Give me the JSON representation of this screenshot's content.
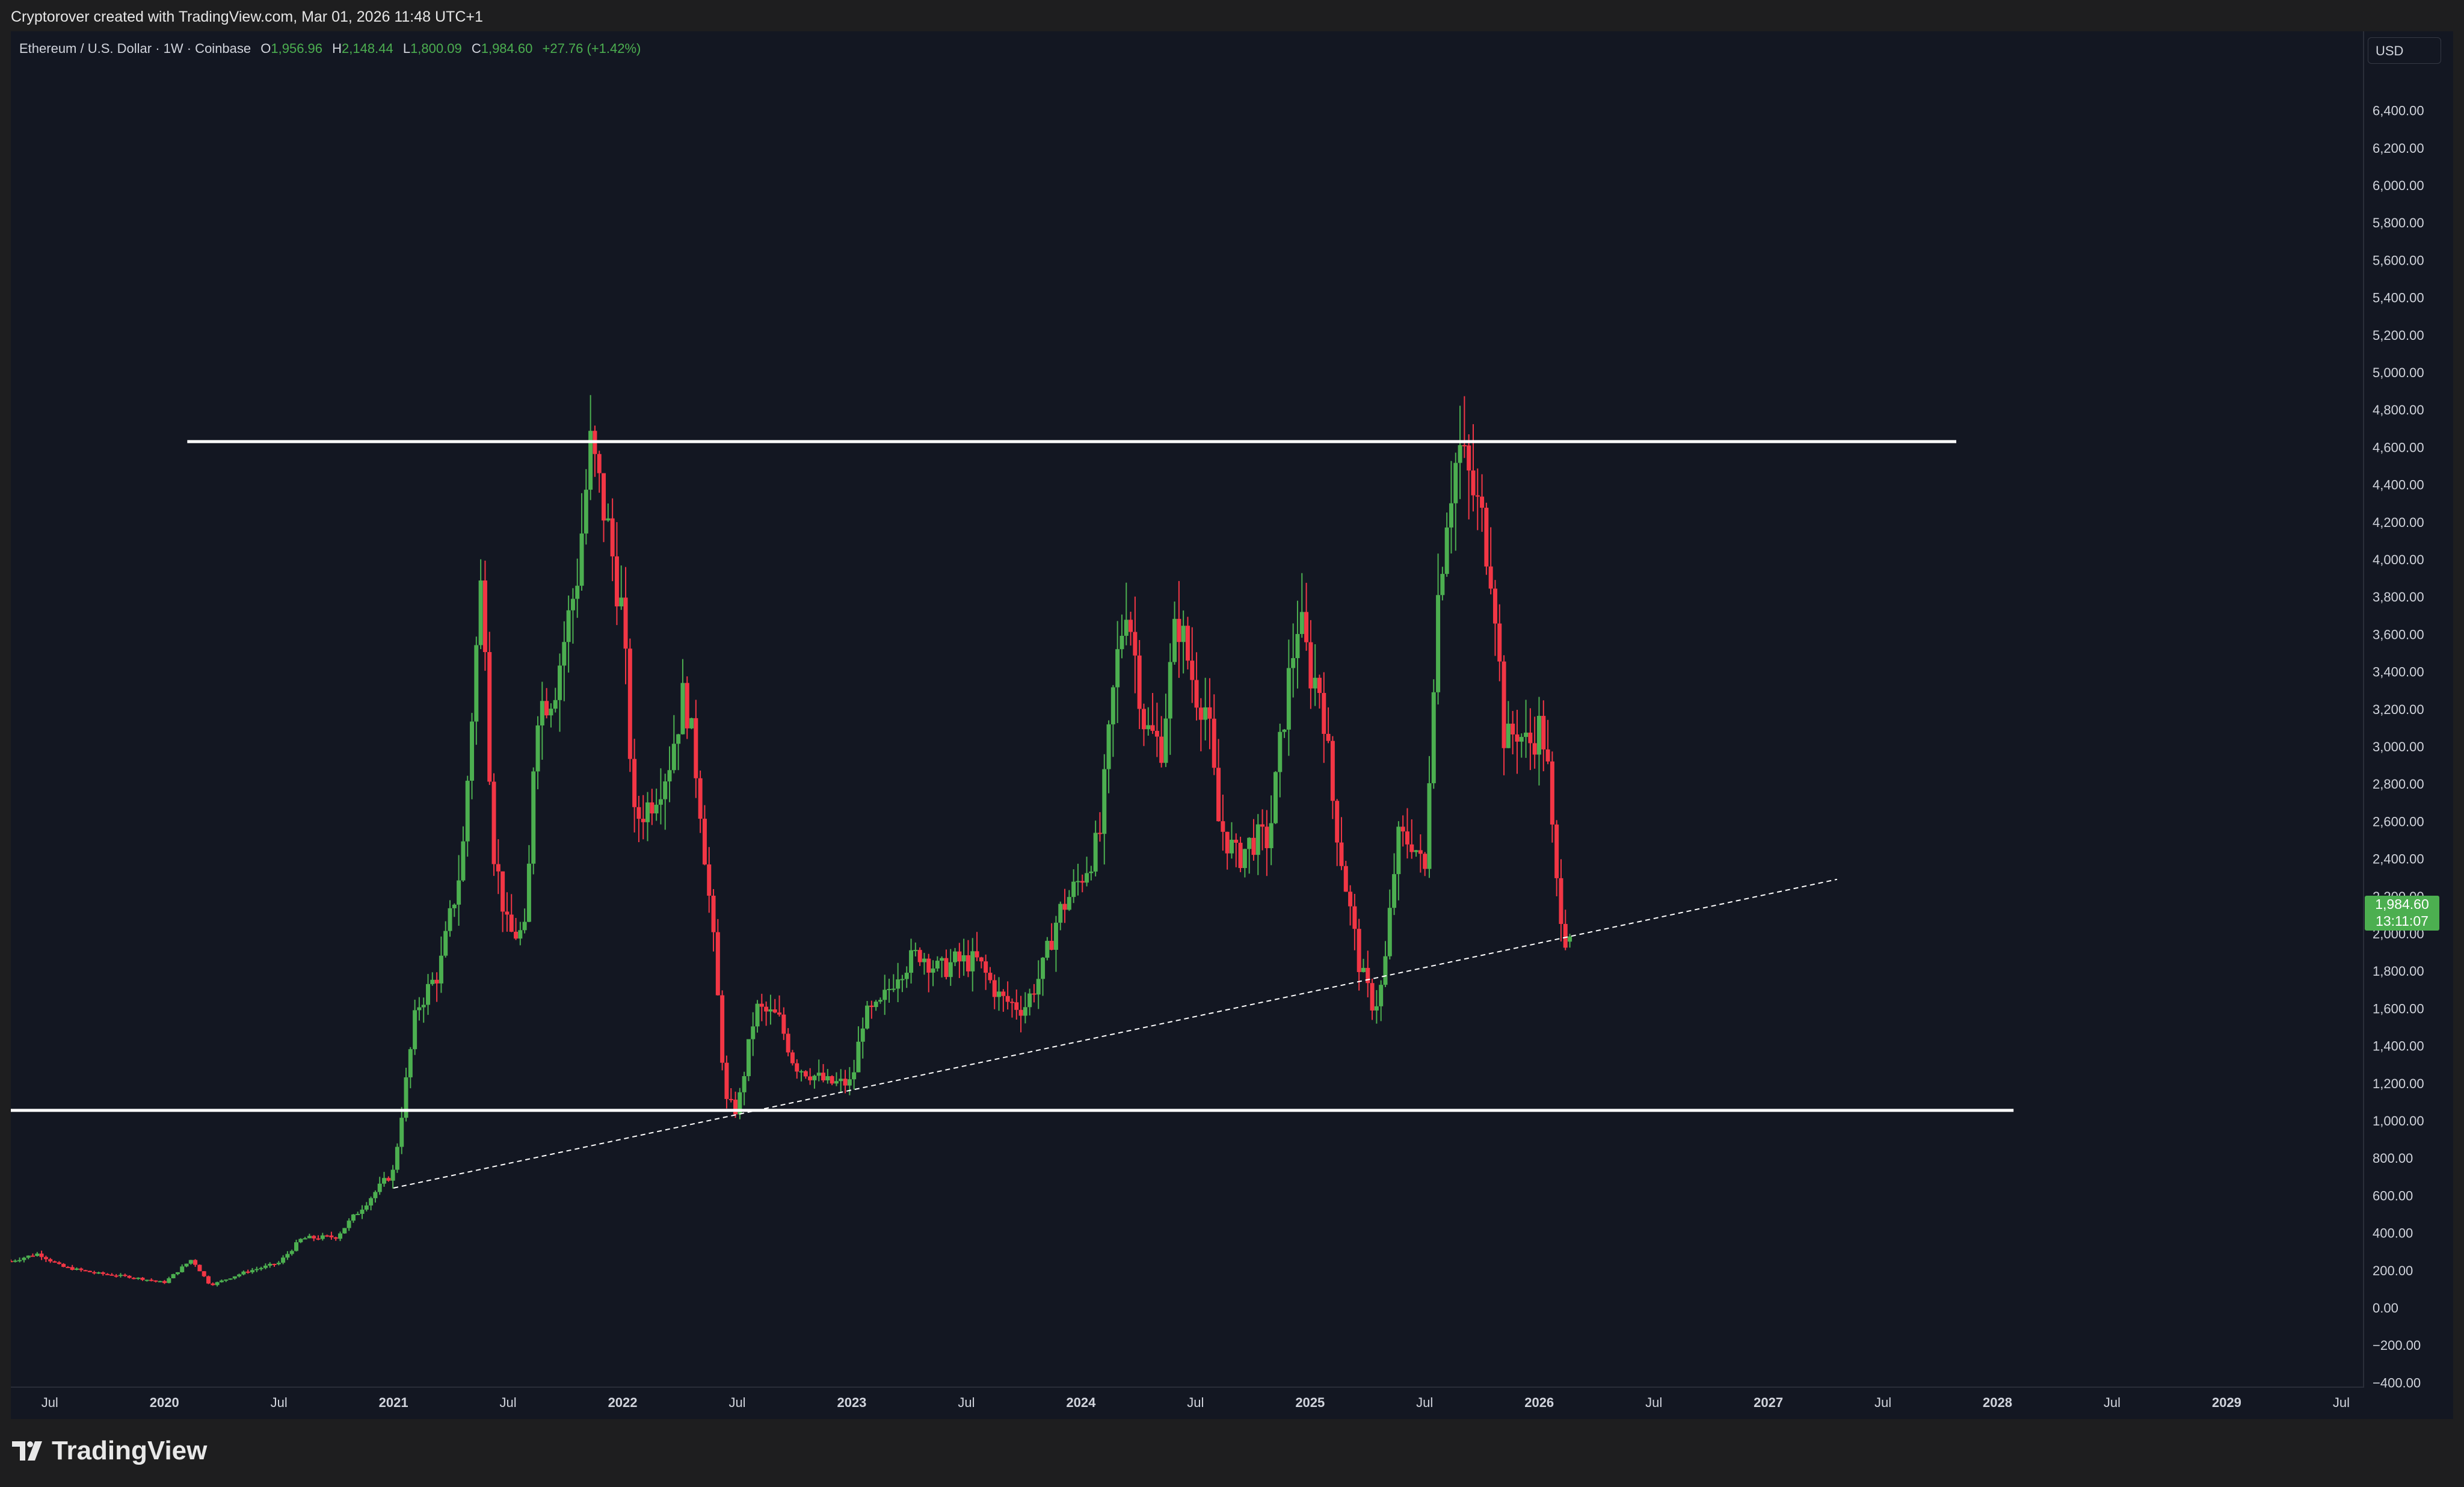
{
  "header": {
    "credit": "Cryptorover created with TradingView.com, Mar 01, 2026 11:48 UTC+1"
  },
  "legend": {
    "symbol": "Ethereum / U.S. Dollar · 1W · Coinbase",
    "open_label": "O",
    "open": "1,956.96",
    "high_label": "H",
    "high": "2,148.44",
    "low_label": "L",
    "low": "1,800.09",
    "close_label": "C",
    "close": "1,984.60",
    "change": "+27.76 (+1.42%)"
  },
  "price_scale": {
    "currency": "USD",
    "last_price": "1,984.60",
    "countdown": "13:11:07"
  },
  "colors": {
    "up": "#4caf50",
    "down": "#f23645",
    "background": "#131722",
    "grid": "#1e222d",
    "text": "#d1d4dc",
    "lines": "#ffffff"
  },
  "footer": {
    "brand": "TradingView"
  },
  "chart_data": {
    "type": "candlestick",
    "title": "Ethereum / U.S. Dollar · 1W · Coinbase",
    "ylim": [
      -500,
      6500
    ],
    "y_ticks": [
      -400,
      -200,
      0,
      200,
      400,
      600,
      800,
      1000,
      1200,
      1400,
      1600,
      1800,
      2000,
      2200,
      2400,
      2600,
      2800,
      3000,
      3200,
      3400,
      3600,
      3800,
      4000,
      4200,
      4400,
      4600,
      4800,
      5000,
      5200,
      5400,
      5600,
      5800,
      6000,
      6200,
      6400
    ],
    "y_tick_labels": [
      "−400.00",
      "−200.00",
      "0.00",
      "200.00",
      "400.00",
      "600.00",
      "800.00",
      "1,000.00",
      "1,200.00",
      "1,400.00",
      "1,600.00",
      "1,800.00",
      "2,000.00",
      "2,200.00",
      "2,400.00",
      "2,600.00",
      "2,800.00",
      "3,000.00",
      "3,200.00",
      "3,400.00",
      "3,600.00",
      "3,800.00",
      "4,000.00",
      "4,200.00",
      "4,400.00",
      "4,600.00",
      "4,800.00",
      "5,000.00",
      "5,200.00",
      "5,400.00",
      "5,600.00",
      "5,800.00",
      "6,000.00",
      "6,200.00",
      "6,400.00"
    ],
    "xlim": [
      2019.33,
      2029.6
    ],
    "x_ticks": [
      {
        "t": 2019.5,
        "label": "Jul",
        "bold": false
      },
      {
        "t": 2020.0,
        "label": "2020",
        "bold": true
      },
      {
        "t": 2020.5,
        "label": "Jul",
        "bold": false
      },
      {
        "t": 2021.0,
        "label": "2021",
        "bold": true
      },
      {
        "t": 2021.5,
        "label": "Jul",
        "bold": false
      },
      {
        "t": 2022.0,
        "label": "2022",
        "bold": true
      },
      {
        "t": 2022.5,
        "label": "Jul",
        "bold": false
      },
      {
        "t": 2023.0,
        "label": "2023",
        "bold": true
      },
      {
        "t": 2023.5,
        "label": "Jul",
        "bold": false
      },
      {
        "t": 2024.0,
        "label": "2024",
        "bold": true
      },
      {
        "t": 2024.5,
        "label": "Jul",
        "bold": false
      },
      {
        "t": 2025.0,
        "label": "2025",
        "bold": true
      },
      {
        "t": 2025.5,
        "label": "Jul",
        "bold": false
      },
      {
        "t": 2026.0,
        "label": "2026",
        "bold": true
      },
      {
        "t": 2026.5,
        "label": "Jul",
        "bold": false
      },
      {
        "t": 2027.0,
        "label": "2027",
        "bold": true
      },
      {
        "t": 2027.5,
        "label": "Jul",
        "bold": false
      },
      {
        "t": 2028.0,
        "label": "2028",
        "bold": true
      },
      {
        "t": 2028.5,
        "label": "Jul",
        "bold": false
      },
      {
        "t": 2029.0,
        "label": "2029",
        "bold": true
      },
      {
        "t": 2029.5,
        "label": "Jul",
        "bold": false
      }
    ],
    "price_path": [
      [
        2019.33,
        250
      ],
      [
        2019.45,
        290
      ],
      [
        2019.55,
        220
      ],
      [
        2019.7,
        185
      ],
      [
        2019.85,
        165
      ],
      [
        2020.0,
        135
      ],
      [
        2020.12,
        260
      ],
      [
        2020.2,
        120
      ],
      [
        2020.35,
        190
      ],
      [
        2020.5,
        240
      ],
      [
        2020.6,
        370
      ],
      [
        2020.75,
        380
      ],
      [
        2020.9,
        590
      ],
      [
        2021.0,
        730
      ],
      [
        2021.1,
        1600
      ],
      [
        2021.2,
        1800
      ],
      [
        2021.3,
        2400
      ],
      [
        2021.36,
        3500
      ],
      [
        2021.39,
        4000
      ],
      [
        2021.43,
        2500
      ],
      [
        2021.5,
        2000
      ],
      [
        2021.58,
        2000
      ],
      [
        2021.62,
        3200
      ],
      [
        2021.7,
        3300
      ],
      [
        2021.8,
        3900
      ],
      [
        2021.86,
        4600
      ],
      [
        2021.93,
        4200
      ],
      [
        2022.0,
        3700
      ],
      [
        2022.05,
        2600
      ],
      [
        2022.12,
        2700
      ],
      [
        2022.2,
        2900
      ],
      [
        2022.27,
        3300
      ],
      [
        2022.33,
        2800
      ],
      [
        2022.4,
        1900
      ],
      [
        2022.45,
        1100
      ],
      [
        2022.5,
        1050
      ],
      [
        2022.58,
        1600
      ],
      [
        2022.68,
        1550
      ],
      [
        2022.75,
        1300
      ],
      [
        2022.82,
        1250
      ],
      [
        2022.9,
        1200
      ],
      [
        2023.0,
        1200
      ],
      [
        2023.05,
        1550
      ],
      [
        2023.12,
        1600
      ],
      [
        2023.2,
        1800
      ],
      [
        2023.3,
        1900
      ],
      [
        2023.38,
        1800
      ],
      [
        2023.45,
        1850
      ],
      [
        2023.55,
        1850
      ],
      [
        2023.65,
        1650
      ],
      [
        2023.75,
        1600
      ],
      [
        2023.83,
        1800
      ],
      [
        2023.9,
        2100
      ],
      [
        2024.0,
        2300
      ],
      [
        2024.08,
        2500
      ],
      [
        2024.15,
        3400
      ],
      [
        2024.2,
        3800
      ],
      [
        2024.28,
        3100
      ],
      [
        2024.35,
        3000
      ],
      [
        2024.42,
        3700
      ],
      [
        2024.5,
        3300
      ],
      [
        2024.55,
        3200
      ],
      [
        2024.6,
        2600
      ],
      [
        2024.68,
        2400
      ],
      [
        2024.75,
        2500
      ],
      [
        2024.82,
        2500
      ],
      [
        2024.9,
        3300
      ],
      [
        2024.95,
        3700
      ],
      [
        2025.0,
        3400
      ],
      [
        2025.05,
        3300
      ],
      [
        2025.1,
        2700
      ],
      [
        2025.15,
        2300
      ],
      [
        2025.22,
        1800
      ],
      [
        2025.28,
        1600
      ],
      [
        2025.32,
        1750
      ],
      [
        2025.38,
        2500
      ],
      [
        2025.45,
        2500
      ],
      [
        2025.5,
        2300
      ],
      [
        2025.55,
        3700
      ],
      [
        2025.6,
        4300
      ],
      [
        2025.65,
        4600
      ],
      [
        2025.7,
        4400
      ],
      [
        2025.75,
        4200
      ],
      [
        2025.8,
        3900
      ],
      [
        2025.85,
        3000
      ],
      [
        2025.9,
        3100
      ],
      [
        2025.95,
        3000
      ],
      [
        2026.0,
        3100
      ],
      [
        2026.03,
        3000
      ],
      [
        2026.07,
        2300
      ],
      [
        2026.12,
        1950
      ],
      [
        2026.14,
        1985
      ]
    ],
    "horizontal_lines": [
      {
        "y": 4630,
        "x1": 2020.1,
        "x2": 2027.82
      },
      {
        "y": 1055,
        "x1": 2019.33,
        "x2": 2028.07
      }
    ],
    "trendline": {
      "x1": 2021.0,
      "y1": 640,
      "x2": 2027.3,
      "y2": 2290,
      "style": "dashed"
    },
    "last": {
      "open": 1956.96,
      "high": 2148.44,
      "low": 1800.09,
      "close": 1984.6
    }
  }
}
